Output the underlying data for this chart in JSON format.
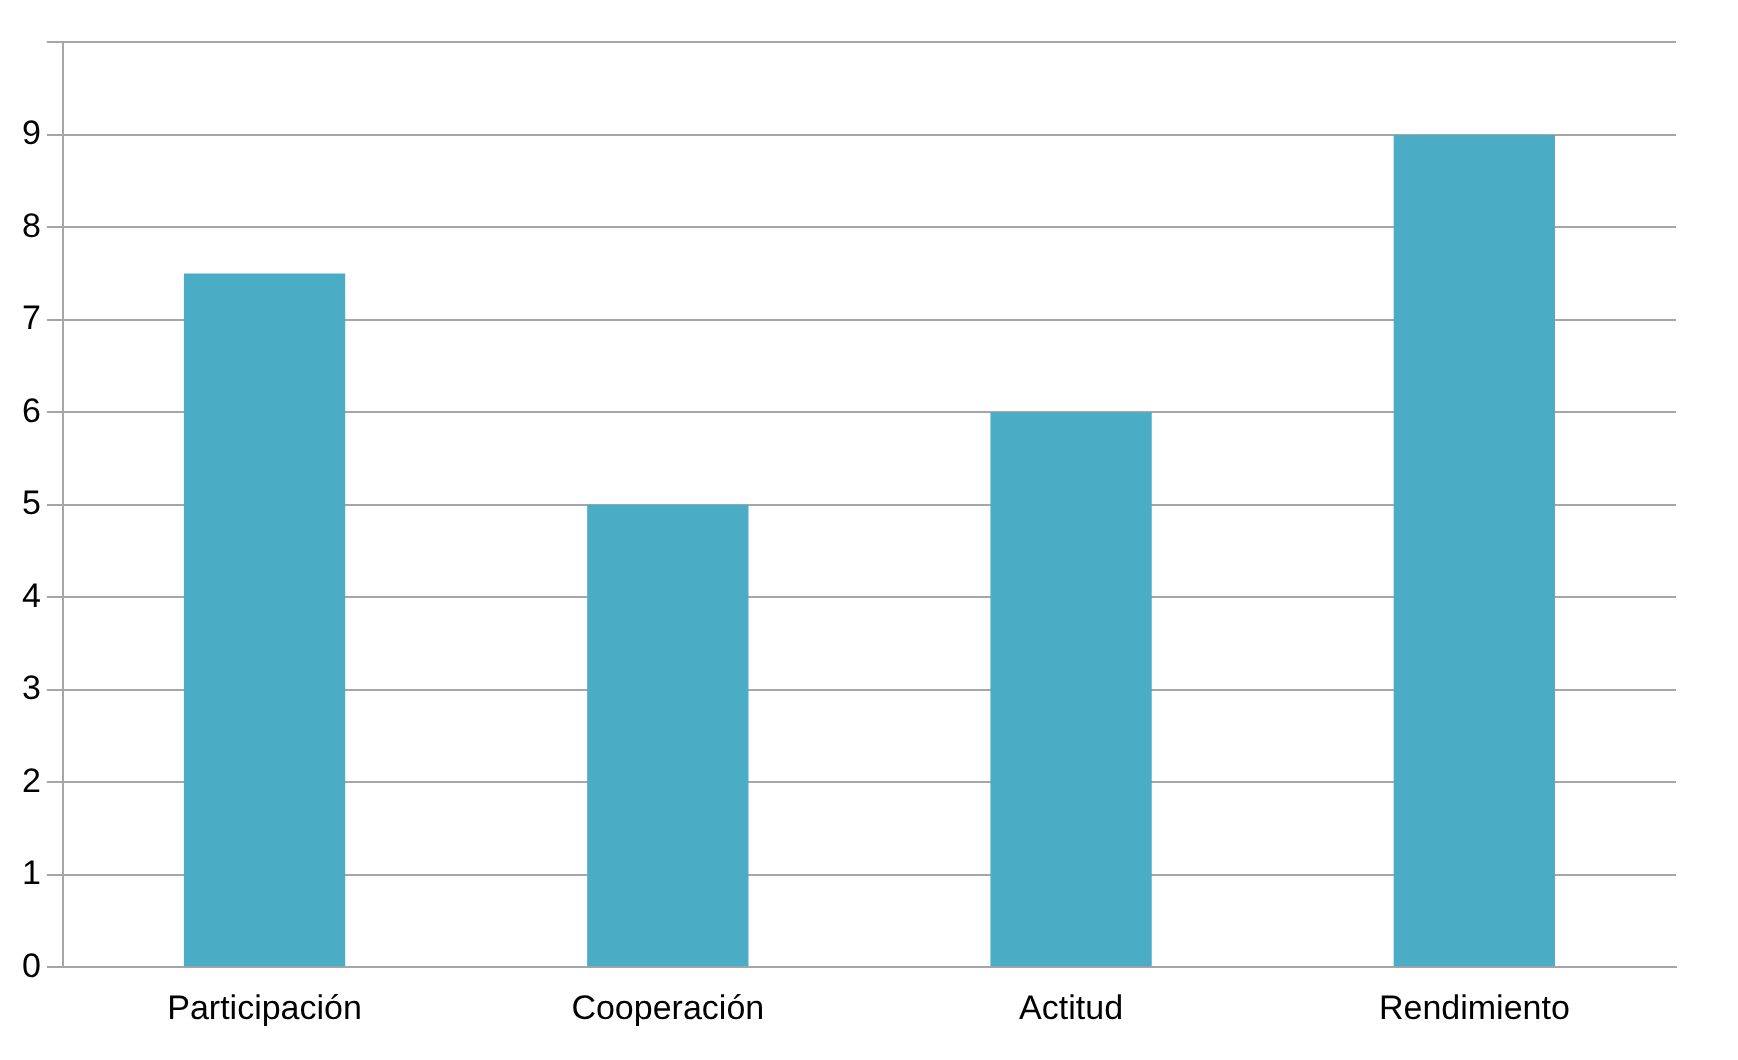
{
  "chart_data": {
    "type": "bar",
    "categories": [
      "Participación",
      "Cooperación",
      "Actitud",
      "Rendimiento"
    ],
    "values": [
      7.5,
      5,
      6,
      9
    ],
    "color": "#4bacc6",
    "ylim": [
      0,
      10
    ],
    "yticks": [
      0,
      1,
      2,
      3,
      4,
      5,
      6,
      7,
      8,
      9,
      {
        "value": 10,
        "label": null
      }
    ],
    "grid": "y"
  }
}
